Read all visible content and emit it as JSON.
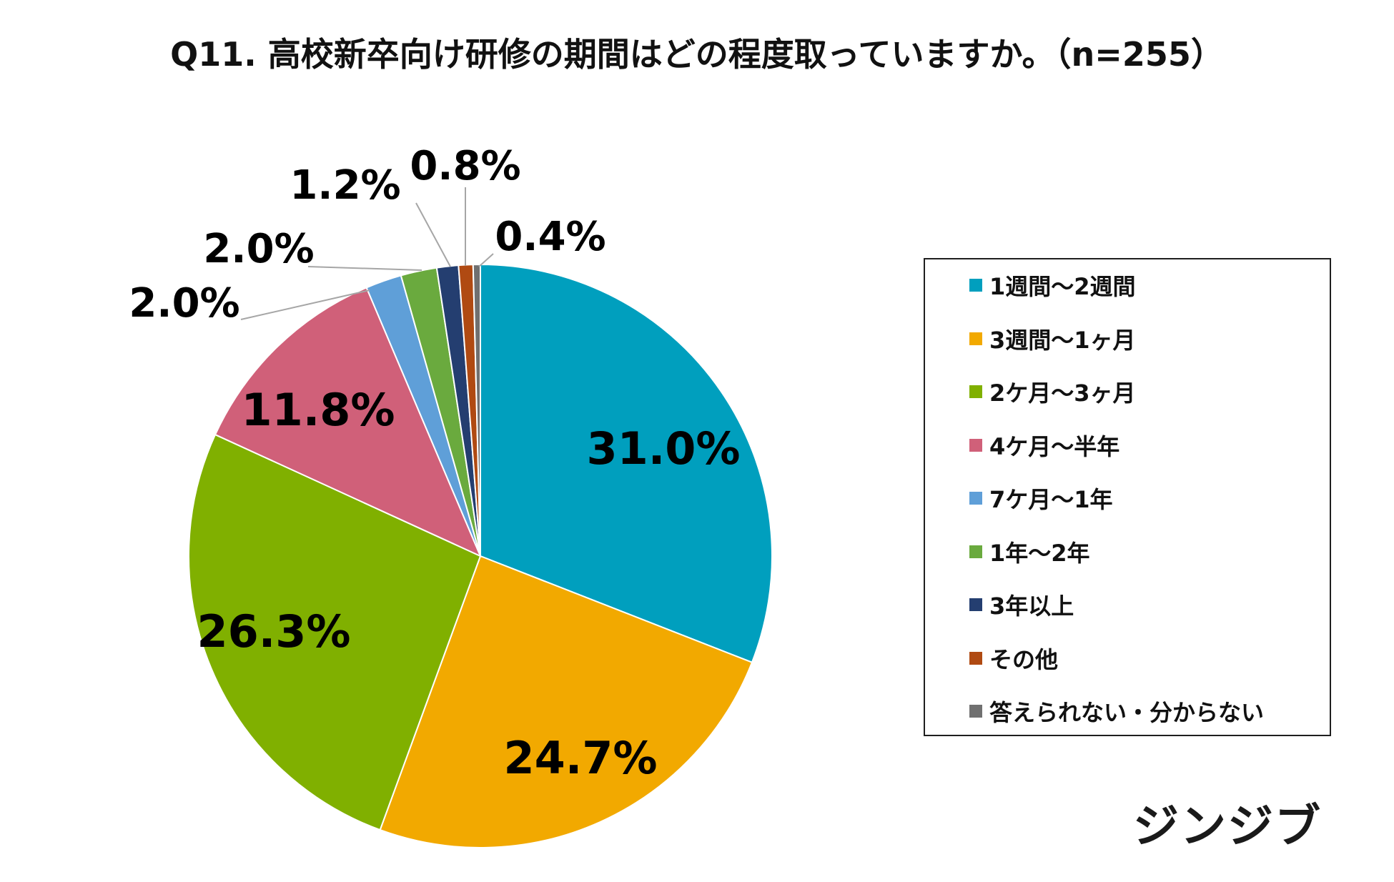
{
  "chart_data": {
    "type": "pie",
    "title": "Q11. 高校新卒向け研修の期間はどの程度取っていますか。（n=255）",
    "start_angle_deg": 0,
    "direction": "clockwise",
    "slices": [
      {
        "label": "1週間～2週間",
        "value": 31.0,
        "display": "31.0%",
        "color": "#009fbe"
      },
      {
        "label": "3週間～1ヶ月",
        "value": 24.7,
        "display": "24.7%",
        "color": "#f2a900"
      },
      {
        "label": "2ケ月～3ヶ月",
        "value": 26.3,
        "display": "26.3%",
        "color": "#80b000"
      },
      {
        "label": "4ケ月～半年",
        "value": 11.8,
        "display": "11.8%",
        "color": "#d06079"
      },
      {
        "label": "7ケ月～1年",
        "value": 2.0,
        "display": "2.0%",
        "color": "#5f9fd8"
      },
      {
        "label": "1年～2年",
        "value": 2.0,
        "display": "2.0%",
        "color": "#6aaa3e"
      },
      {
        "label": "3年以上",
        "value": 1.2,
        "display": "1.2%",
        "color": "#243e70"
      },
      {
        "label": "その他",
        "value": 0.8,
        "display": "0.8%",
        "color": "#b04a12"
      },
      {
        "label": "答えられない・分からない",
        "value": 0.4,
        "display": "0.4%",
        "color": "#707070"
      }
    ],
    "legend_position": "right"
  },
  "brand": {
    "name": "ジンジブ"
  }
}
